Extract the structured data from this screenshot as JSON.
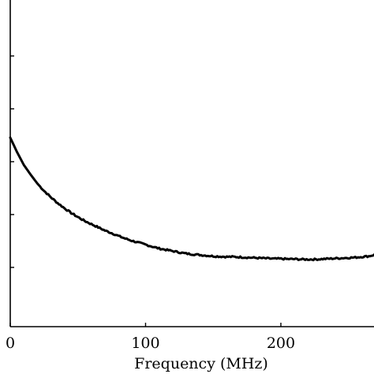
{
  "chart_data": {
    "type": "line",
    "title": "",
    "xlabel": "Frequency (MHz)",
    "ylabel": "",
    "xlim": [
      0,
      270
    ],
    "ylim": [
      0,
      1
    ],
    "grid": false,
    "x_ticks": [
      0,
      100,
      200
    ],
    "x_tick_labels": [
      "0",
      "100",
      "200"
    ],
    "y_ticks": [
      0.185,
      0.35,
      0.515,
      0.68,
      0.845
    ],
    "colors": {
      "line": "#000000",
      "axes": "#000000",
      "background": "#ffffff"
    },
    "series": [
      {
        "x": [
          0,
          5,
          10,
          15,
          20,
          25,
          30,
          35,
          40,
          45,
          50,
          55,
          60,
          65,
          70,
          75,
          80,
          85,
          90,
          95,
          100,
          105,
          110,
          115,
          120,
          125,
          130,
          135,
          140,
          145,
          150,
          155,
          160,
          165,
          170,
          175,
          180,
          185,
          190,
          195,
          200,
          205,
          210,
          215,
          220,
          225,
          230,
          235,
          240,
          245,
          250,
          255,
          260,
          265,
          270
        ],
        "y": [
          0.59,
          0.545,
          0.505,
          0.475,
          0.447,
          0.424,
          0.404,
          0.386,
          0.37,
          0.355,
          0.342,
          0.33,
          0.32,
          0.31,
          0.3,
          0.292,
          0.283,
          0.275,
          0.268,
          0.262,
          0.256,
          0.25,
          0.244,
          0.24,
          0.236,
          0.232,
          0.228,
          0.226,
          0.224,
          0.222,
          0.22,
          0.219,
          0.218,
          0.218,
          0.217,
          0.216,
          0.215,
          0.214,
          0.213,
          0.212,
          0.212,
          0.211,
          0.211,
          0.21,
          0.21,
          0.21,
          0.211,
          0.212,
          0.213,
          0.214,
          0.215,
          0.216,
          0.218,
          0.22,
          0.225
        ],
        "noise": 0.0025
      }
    ]
  }
}
